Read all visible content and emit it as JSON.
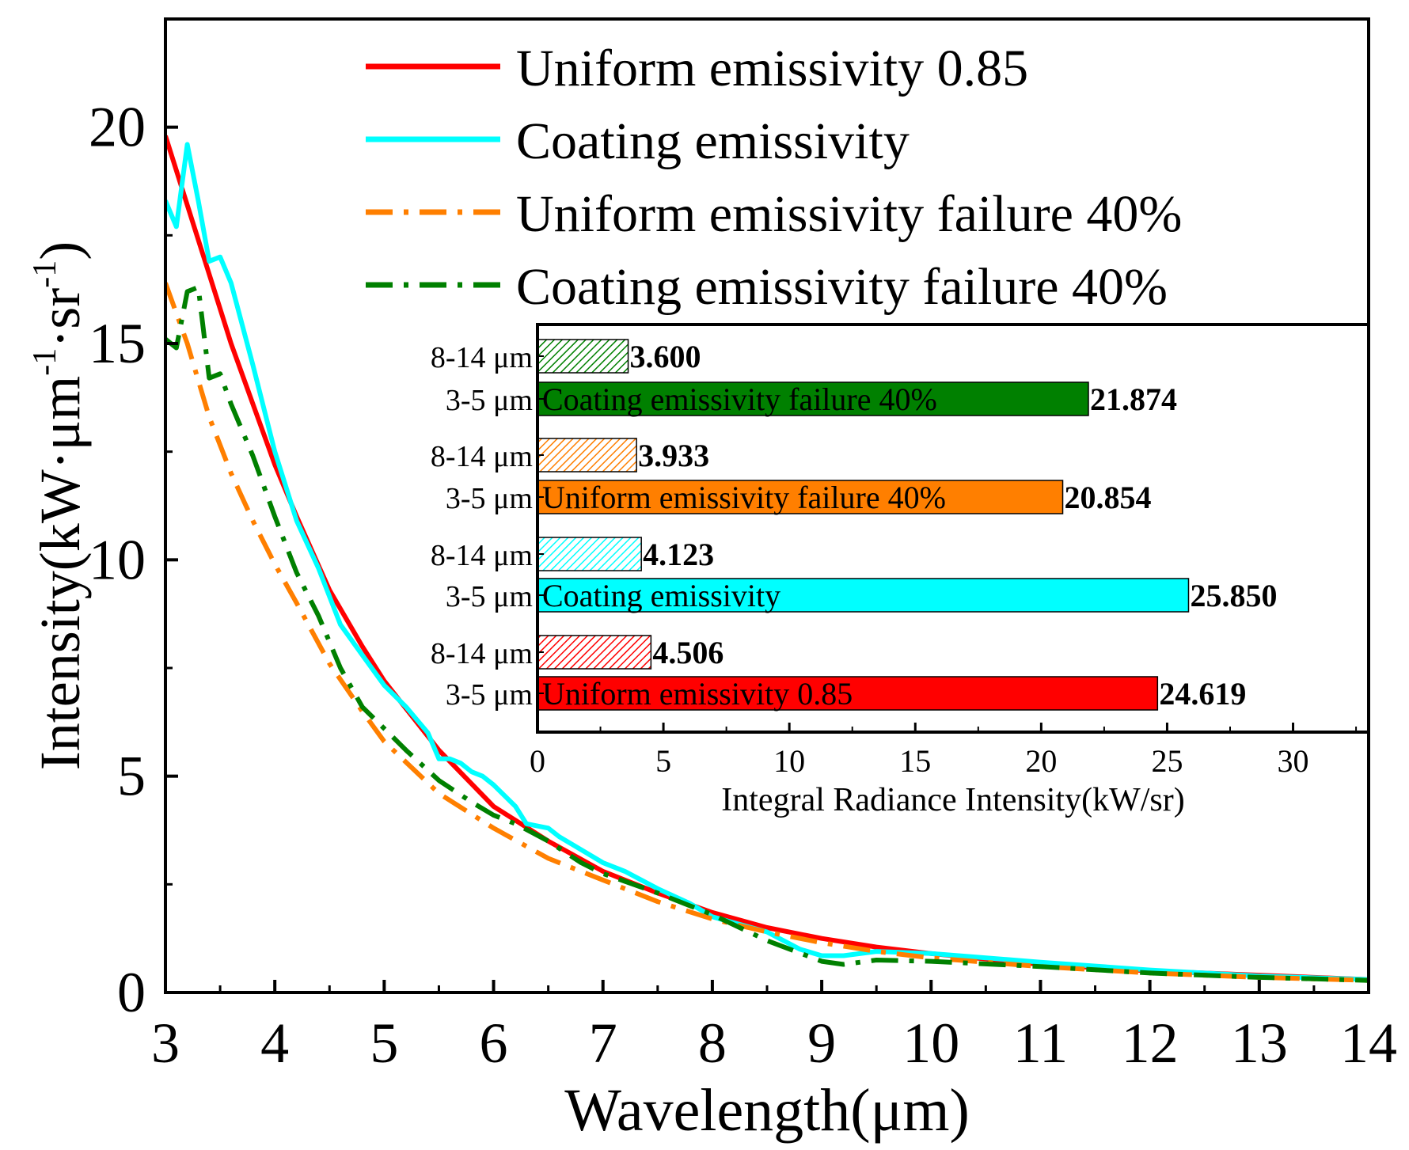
{
  "chart_data": [
    {
      "type": "line",
      "title": "",
      "xlabel": "Wavelength(μm)",
      "ylabel_parts": [
        "Intensity(kW·μm",
        "-1",
        "·sr",
        "-1",
        ")"
      ],
      "xlim": [
        3,
        14
      ],
      "ylim": [
        0,
        22.5
      ],
      "xticks": [
        3,
        4,
        5,
        6,
        7,
        8,
        9,
        10,
        11,
        12,
        13,
        14
      ],
      "yticks": [
        0,
        5,
        10,
        15,
        20
      ],
      "legend_position": "top-right",
      "series": [
        {
          "name": "Uniform emissivity 0.85",
          "color": "#ff0000",
          "style": "solid",
          "x": [
            3.0,
            3.2,
            3.4,
            3.6,
            3.8,
            4.0,
            4.2,
            4.5,
            4.8,
            5.0,
            5.5,
            6.0,
            6.5,
            7.0,
            7.5,
            8.0,
            8.5,
            9.0,
            9.5,
            10.0,
            11.0,
            12.0,
            13.0,
            14.0
          ],
          "y": [
            19.8,
            18.2,
            16.6,
            15.0,
            13.6,
            12.2,
            11.0,
            9.3,
            8.0,
            7.2,
            5.6,
            4.3,
            3.5,
            2.8,
            2.3,
            1.85,
            1.5,
            1.25,
            1.05,
            0.9,
            0.65,
            0.5,
            0.4,
            0.3
          ]
        },
        {
          "name": "Coating emissivity",
          "color": "#00ffff",
          "style": "solid",
          "x": [
            3.0,
            3.1,
            3.2,
            3.3,
            3.4,
            3.5,
            3.6,
            3.8,
            4.0,
            4.2,
            4.4,
            4.6,
            4.8,
            5.0,
            5.2,
            5.4,
            5.5,
            5.6,
            5.7,
            5.8,
            5.9,
            6.0,
            6.2,
            6.3,
            6.5,
            6.6,
            6.8,
            7.0,
            7.2,
            7.5,
            7.8,
            8.0,
            8.5,
            8.8,
            9.0,
            9.2,
            9.5,
            10.0,
            11.0,
            12.0,
            13.0,
            14.0
          ],
          "y": [
            18.3,
            17.7,
            19.6,
            18.3,
            16.9,
            17.0,
            16.4,
            14.5,
            12.5,
            10.9,
            9.8,
            8.5,
            7.8,
            7.1,
            6.6,
            6.0,
            5.4,
            5.4,
            5.3,
            5.1,
            5.0,
            4.8,
            4.3,
            3.9,
            3.8,
            3.6,
            3.3,
            3.0,
            2.8,
            2.4,
            2.05,
            1.75,
            1.4,
            1.0,
            0.85,
            0.85,
            0.95,
            0.9,
            0.7,
            0.52,
            0.38,
            0.3
          ]
        },
        {
          "name": "Uniform emissivity failure 40%",
          "color": "#ff7f00",
          "style": "dash-dot",
          "x": [
            3.0,
            3.2,
            3.4,
            3.6,
            3.8,
            4.0,
            4.2,
            4.5,
            4.8,
            5.0,
            5.5,
            6.0,
            6.5,
            7.0,
            7.5,
            8.0,
            8.5,
            9.0,
            9.5,
            10.0,
            11.0,
            12.0,
            13.0,
            14.0
          ],
          "y": [
            16.4,
            15.0,
            13.3,
            12.0,
            10.9,
            9.9,
            9.0,
            7.6,
            6.5,
            5.8,
            4.6,
            3.8,
            3.1,
            2.6,
            2.1,
            1.7,
            1.4,
            1.15,
            0.95,
            0.8,
            0.6,
            0.45,
            0.35,
            0.28
          ]
        },
        {
          "name": "Coating emissivity failure 40%",
          "color": "#008000",
          "style": "dash-dot",
          "x": [
            3.0,
            3.1,
            3.2,
            3.3,
            3.4,
            3.5,
            3.6,
            3.8,
            4.0,
            4.2,
            4.4,
            4.6,
            4.8,
            5.0,
            5.2,
            5.5,
            5.8,
            6.0,
            6.2,
            6.5,
            6.8,
            7.0,
            7.5,
            8.0,
            8.5,
            9.0,
            9.2,
            9.5,
            10.0,
            11.0,
            12.0,
            13.0,
            14.0
          ],
          "y": [
            15.1,
            14.9,
            16.2,
            16.3,
            14.2,
            14.3,
            13.6,
            12.4,
            11.0,
            9.7,
            8.7,
            7.5,
            6.6,
            6.1,
            5.6,
            4.9,
            4.4,
            4.1,
            3.9,
            3.5,
            3.0,
            2.75,
            2.3,
            1.8,
            1.2,
            0.72,
            0.65,
            0.75,
            0.72,
            0.6,
            0.45,
            0.35,
            0.28
          ]
        }
      ]
    },
    {
      "type": "bar",
      "orientation": "horizontal",
      "xlabel": "Integral Radiance Intensity(kW/sr)",
      "xlim": [
        0,
        33
      ],
      "xticks": [
        0,
        5,
        10,
        15,
        20,
        25,
        30
      ],
      "bars": [
        {
          "label": "8-14 μm",
          "value": 3.6,
          "value_label": "3.600",
          "color": "#008000",
          "hatched": true,
          "inner_label": ""
        },
        {
          "label": "3-5 μm",
          "value": 21.874,
          "value_label": "21.874",
          "color": "#008000",
          "hatched": false,
          "inner_label": "Coating emissivity failure 40%"
        },
        {
          "label": "8-14 μm",
          "value": 3.933,
          "value_label": "3.933",
          "color": "#ff7f00",
          "hatched": true,
          "inner_label": ""
        },
        {
          "label": "3-5 μm",
          "value": 20.854,
          "value_label": "20.854",
          "color": "#ff7f00",
          "hatched": false,
          "inner_label": "Uniform emissivity failure 40%"
        },
        {
          "label": "8-14 μm",
          "value": 4.123,
          "value_label": "4.123",
          "color": "#00ffff",
          "hatched": true,
          "inner_label": ""
        },
        {
          "label": "3-5 μm",
          "value": 25.85,
          "value_label": "25.850",
          "color": "#00ffff",
          "hatched": false,
          "inner_label": "Coating emissivity"
        },
        {
          "label": "8-14 μm",
          "value": 4.506,
          "value_label": "4.506",
          "color": "#ff0000",
          "hatched": true,
          "inner_label": ""
        },
        {
          "label": "3-5 μm",
          "value": 24.619,
          "value_label": "24.619",
          "color": "#ff0000",
          "hatched": false,
          "inner_label": "Uniform emissivity 0.85"
        }
      ]
    }
  ]
}
